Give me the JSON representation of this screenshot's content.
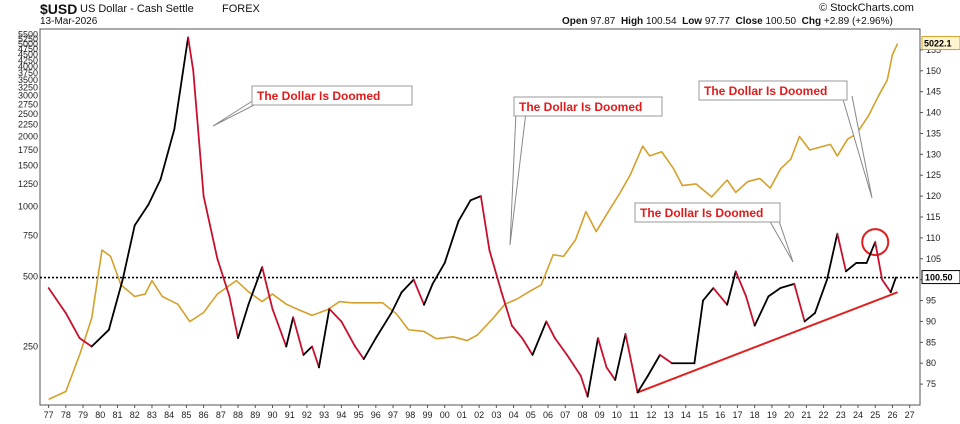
{
  "header": {
    "symbol": "$USD",
    "name": "US Dollar - Cash Settle",
    "exchange": "FOREX",
    "date": "13-Mar-2026",
    "open_label": "Open",
    "open": "97.87",
    "high_label": "High",
    "high": "100.54",
    "low_label": "Low",
    "low": "97.77",
    "close_label": "Close",
    "close": "100.50",
    "chg_label": "Chg",
    "chg": "+2.89 (+2.96%)",
    "brand": "© StockCharts.com"
  },
  "colors": {
    "dollar_up": "#000000",
    "dollar_down": "#c8102e",
    "gold": "#d4a029",
    "annotation_text": "#e01b1b",
    "trendline": "#e02020",
    "axis_text": "#222222"
  },
  "chart_data": {
    "type": "line",
    "x_ticks": [
      "77",
      "78",
      "79",
      "80",
      "81",
      "82",
      "83",
      "84",
      "85",
      "86",
      "87",
      "88",
      "89",
      "90",
      "91",
      "92",
      "93",
      "94",
      "95",
      "96",
      "97",
      "98",
      "99",
      "00",
      "01",
      "02",
      "03",
      "04",
      "05",
      "06",
      "07",
      "08",
      "09",
      "10",
      "11",
      "12",
      "13",
      "14",
      "15",
      "16",
      "17",
      "18",
      "19",
      "20",
      "21",
      "22",
      "23",
      "24",
      "25",
      "26",
      "27"
    ],
    "right_axis": {
      "ticks": [
        75,
        80,
        85,
        90,
        95,
        100,
        105,
        110,
        115,
        120,
        125,
        130,
        135,
        140,
        145,
        150,
        155
      ],
      "range": [
        70,
        160
      ]
    },
    "left_axis": {
      "scale": "log",
      "ticks": [
        "250",
        "500",
        "750",
        "1000",
        "1250",
        "1500",
        "1750",
        "2000",
        "2250",
        "2500",
        "2750",
        "3000",
        "3250",
        "3500",
        "3750",
        "4000",
        "4250",
        "4500",
        "4750",
        "5000",
        "5250",
        "5500"
      ],
      "range": [
        140,
        5800
      ]
    },
    "series": [
      {
        "key": "usd",
        "points": [
          [
            1977,
            98
          ],
          [
            1978,
            92
          ],
          [
            1978.8,
            86
          ],
          [
            1979.5,
            84
          ],
          [
            1980.5,
            88
          ],
          [
            1981.3,
            100
          ],
          [
            1982,
            113
          ],
          [
            1982.8,
            118
          ],
          [
            1983.5,
            124
          ],
          [
            1984.3,
            136
          ],
          [
            1985.1,
            158
          ],
          [
            1985.4,
            150
          ],
          [
            1986,
            120
          ],
          [
            1986.8,
            105
          ],
          [
            1987.5,
            96
          ],
          [
            1988,
            86
          ],
          [
            1988.6,
            94
          ],
          [
            1989.4,
            103
          ],
          [
            1990,
            93
          ],
          [
            1990.8,
            84
          ],
          [
            1991.2,
            91
          ],
          [
            1991.8,
            82
          ],
          [
            1992.3,
            84
          ],
          [
            1992.7,
            79
          ],
          [
            1993.3,
            93
          ],
          [
            1994,
            90
          ],
          [
            1994.8,
            84
          ],
          [
            1995.3,
            81
          ],
          [
            1996,
            86
          ],
          [
            1996.9,
            92
          ],
          [
            1997.5,
            97
          ],
          [
            1998.2,
            100
          ],
          [
            1998.8,
            94
          ],
          [
            1999.3,
            99
          ],
          [
            2000,
            104
          ],
          [
            2000.8,
            114
          ],
          [
            2001.5,
            119
          ],
          [
            2002.1,
            120
          ],
          [
            2002.6,
            107
          ],
          [
            2003.3,
            97
          ],
          [
            2003.9,
            89
          ],
          [
            2004.5,
            86
          ],
          [
            2005.1,
            82
          ],
          [
            2005.9,
            90
          ],
          [
            2006.4,
            86
          ],
          [
            2007.1,
            82
          ],
          [
            2007.9,
            77
          ],
          [
            2008.3,
            72
          ],
          [
            2008.9,
            86
          ],
          [
            2009.4,
            79
          ],
          [
            2009.9,
            76
          ],
          [
            2010.5,
            87
          ],
          [
            2011.2,
            73
          ],
          [
            2011.8,
            77
          ],
          [
            2012.5,
            82
          ],
          [
            2013.2,
            80
          ],
          [
            2013.9,
            80
          ],
          [
            2014.5,
            80
          ],
          [
            2015,
            95
          ],
          [
            2015.6,
            98
          ],
          [
            2016.4,
            94
          ],
          [
            2016.9,
            102
          ],
          [
            2017.5,
            96
          ],
          [
            2018,
            89
          ],
          [
            2018.8,
            96
          ],
          [
            2019.5,
            98
          ],
          [
            2020.3,
            99
          ],
          [
            2020.9,
            90
          ],
          [
            2021.5,
            92
          ],
          [
            2022.2,
            100
          ],
          [
            2022.8,
            111
          ],
          [
            2023.3,
            102
          ],
          [
            2023.9,
            104
          ],
          [
            2024.5,
            104
          ],
          [
            2025.0,
            109
          ],
          [
            2025.4,
            100
          ],
          [
            2025.9,
            97
          ],
          [
            2026.2,
            100.5
          ]
        ]
      },
      {
        "key": "gold",
        "points": [
          [
            1977,
            148
          ],
          [
            1978,
            160
          ],
          [
            1978.8,
            230
          ],
          [
            1979.5,
            330
          ],
          [
            1980.1,
            650
          ],
          [
            1980.6,
            610
          ],
          [
            1981.2,
            460
          ],
          [
            1982,
            410
          ],
          [
            1982.6,
            420
          ],
          [
            1983,
            480
          ],
          [
            1983.6,
            410
          ],
          [
            1984.5,
            380
          ],
          [
            1985.2,
            320
          ],
          [
            1986,
            350
          ],
          [
            1986.8,
            420
          ],
          [
            1987.9,
            480
          ],
          [
            1988.6,
            430
          ],
          [
            1989.4,
            390
          ],
          [
            1990,
            420
          ],
          [
            1990.8,
            380
          ],
          [
            1991.5,
            360
          ],
          [
            1992.3,
            340
          ],
          [
            1993.2,
            360
          ],
          [
            1993.9,
            390
          ],
          [
            1994.6,
            385
          ],
          [
            1995.5,
            385
          ],
          [
            1996.4,
            385
          ],
          [
            1997.2,
            345
          ],
          [
            1997.9,
            295
          ],
          [
            1998.8,
            290
          ],
          [
            1999.5,
            270
          ],
          [
            2000.5,
            275
          ],
          [
            2001.3,
            265
          ],
          [
            2001.9,
            280
          ],
          [
            2002.8,
            330
          ],
          [
            2003.5,
            380
          ],
          [
            2004.2,
            400
          ],
          [
            2004.9,
            430
          ],
          [
            2005.6,
            460
          ],
          [
            2006.3,
            620
          ],
          [
            2006.9,
            610
          ],
          [
            2007.6,
            720
          ],
          [
            2008.2,
            950
          ],
          [
            2008.8,
            780
          ],
          [
            2009.5,
            950
          ],
          [
            2010.2,
            1150
          ],
          [
            2010.8,
            1380
          ],
          [
            2011.5,
            1820
          ],
          [
            2011.9,
            1650
          ],
          [
            2012.6,
            1720
          ],
          [
            2013.3,
            1450
          ],
          [
            2013.8,
            1230
          ],
          [
            2014.6,
            1250
          ],
          [
            2015.5,
            1100
          ],
          [
            2016.4,
            1300
          ],
          [
            2016.9,
            1150
          ],
          [
            2017.6,
            1280
          ],
          [
            2018.3,
            1320
          ],
          [
            2018.9,
            1200
          ],
          [
            2019.5,
            1450
          ],
          [
            2020.1,
            1600
          ],
          [
            2020.6,
            2000
          ],
          [
            2021.2,
            1750
          ],
          [
            2021.8,
            1800
          ],
          [
            2022.4,
            1850
          ],
          [
            2022.8,
            1650
          ],
          [
            2023.4,
            1950
          ],
          [
            2023.9,
            2050
          ],
          [
            2024.6,
            2450
          ],
          [
            2025.2,
            3000
          ],
          [
            2025.7,
            3500
          ],
          [
            2026,
            4500
          ],
          [
            2026.3,
            5022
          ]
        ]
      }
    ],
    "annotations": [
      {
        "text": "The Dollar Is Doomed"
      },
      {
        "text": "The Dollar Is Doomed"
      },
      {
        "text": "The Dollar Is Doomed"
      },
      {
        "text": "The Dollar Is Doomed"
      }
    ],
    "last_price_label": "100.50",
    "gold_last_label": "5022.1",
    "dotted_reference": 100.5
  }
}
